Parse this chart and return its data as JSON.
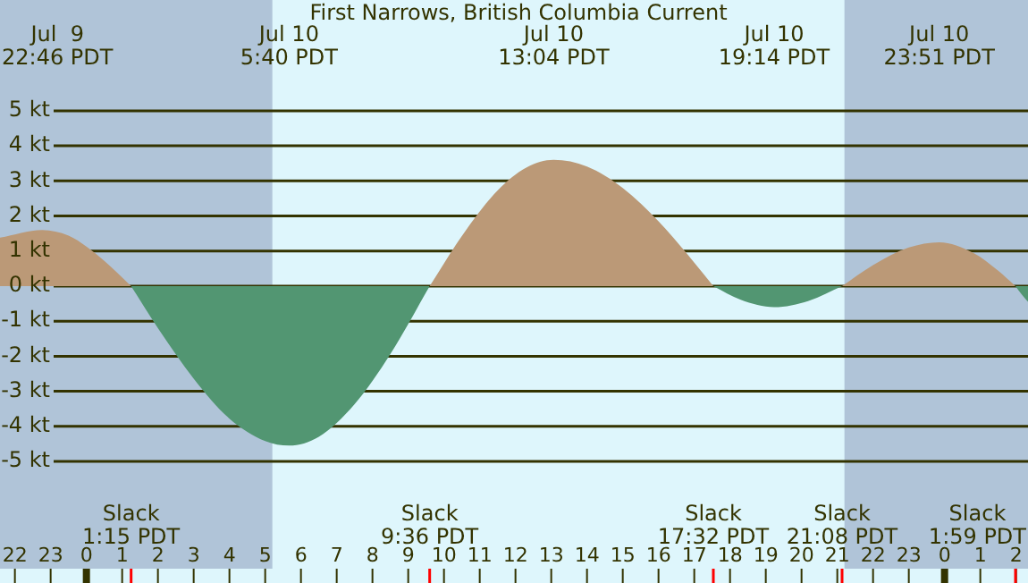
{
  "chart_data": {
    "type": "area",
    "title": "First Narrows, British Columbia Current",
    "series": [
      {
        "color": "#bb9977",
        "x": [
          "--07-09T21:35",
          "--07-09T22:46",
          "--07-09T23:30",
          "--07-10T00:00",
          "--07-10T00:30",
          "--07-10T01:15",
          "--07-10T05:40",
          "--07-10T09:36",
          "--07-10T10:30",
          "--07-10T11:30",
          "--07-10T12:18",
          "--07-10T13:04",
          "--07-10T14:00",
          "--07-10T15:00",
          "--07-10T16:00",
          "--07-10T17:00",
          "--07-10T17:32",
          "--07-10T19:14",
          "--07-10T21:08",
          "--07-10T22:00",
          "--07-10T23:00",
          "--07-10T23:51",
          "--07-11T00:48",
          "--07-11T01:30",
          "--07-11T01:59"
        ],
        "values": [
          1.38,
          1.6,
          1.44,
          1.13,
          0.72,
          0,
          null,
          0,
          1.43,
          2.73,
          3.38,
          3.6,
          3.41,
          2.8,
          1.85,
          0.67,
          0,
          null,
          0,
          0.6,
          1.1,
          1.25,
          0.95,
          0.44,
          0
        ]
      },
      {
        "color": "#529672",
        "x": [
          "--07-10T01:15",
          "--07-10T02:00",
          "--07-10T03:00",
          "--07-10T04:00",
          "--07-10T05:00",
          "--07-10T05:40",
          "--07-10T06:30",
          "--07-10T07:30",
          "--07-10T08:30",
          "--07-10T09:36",
          "--07-10T13:04",
          "--07-10T17:32",
          "--07-10T18:18",
          "--07-10T19:14",
          "--07-10T20:12",
          "--07-10T21:08",
          "--07-10T23:51",
          "--07-11T01:59",
          "--07-11T02:10",
          "--07-11T02:20"
        ],
        "values": [
          0,
          -1.2,
          -2.64,
          -3.78,
          -4.42,
          -4.55,
          -4.3,
          -3.37,
          -1.94,
          0,
          null,
          0,
          -0.39,
          -0.6,
          -0.42,
          0,
          null,
          0,
          -0.25,
          -0.45
        ]
      }
    ],
    "xlim": [
      "--07-09T21:35",
      "--07-11T02:20"
    ],
    "ylim": [
      -8.06,
      8.16
    ],
    "xticks": [
      {
        "value": "--07-09T22:00",
        "label": "22"
      },
      {
        "value": "--07-09T23:00",
        "label": "23"
      },
      {
        "value": "--07-10T00:00",
        "label": "0"
      },
      {
        "value": "--07-10T01:00",
        "label": "1"
      },
      {
        "value": "--07-10T02:00",
        "label": "2"
      },
      {
        "value": "--07-10T03:00",
        "label": "3"
      },
      {
        "value": "--07-10T04:00",
        "label": "4"
      },
      {
        "value": "--07-10T05:00",
        "label": "5"
      },
      {
        "value": "--07-10T06:00",
        "label": "6"
      },
      {
        "value": "--07-10T07:00",
        "label": "7"
      },
      {
        "value": "--07-10T08:00",
        "label": "8"
      },
      {
        "value": "--07-10T09:00",
        "label": "9"
      },
      {
        "value": "--07-10T10:00",
        "label": "10"
      },
      {
        "value": "--07-10T11:00",
        "label": "11"
      },
      {
        "value": "--07-10T12:00",
        "label": "12"
      },
      {
        "value": "--07-10T13:00",
        "label": "13"
      },
      {
        "value": "--07-10T14:00",
        "label": "14"
      },
      {
        "value": "--07-10T15:00",
        "label": "15"
      },
      {
        "value": "--07-10T16:00",
        "label": "16"
      },
      {
        "value": "--07-10T17:00",
        "label": "17"
      },
      {
        "value": "--07-10T18:00",
        "label": "18"
      },
      {
        "value": "--07-10T19:00",
        "label": "19"
      },
      {
        "value": "--07-10T20:00",
        "label": "20"
      },
      {
        "value": "--07-10T21:00",
        "label": "21"
      },
      {
        "value": "--07-10T22:00",
        "label": "22"
      },
      {
        "value": "--07-10T23:00",
        "label": "23"
      },
      {
        "value": "--07-11T00:00",
        "label": "0"
      },
      {
        "value": "--07-11T01:00",
        "label": "1"
      },
      {
        "value": "--07-11T02:00",
        "label": "2"
      }
    ],
    "yticks": [
      {
        "value": -5,
        "label": "-5 kt"
      },
      {
        "value": -4,
        "label": "-4 kt"
      },
      {
        "value": -3,
        "label": "-3 kt"
      },
      {
        "value": -2,
        "label": "-2 kt"
      },
      {
        "value": -1,
        "label": "-1 kt"
      },
      {
        "value": 0,
        "label": "0 kt"
      },
      {
        "value": 1,
        "label": "1 kt"
      },
      {
        "value": 2,
        "label": "2 kt"
      },
      {
        "value": 3,
        "label": "3 kt"
      },
      {
        "value": 4,
        "label": "4 kt"
      },
      {
        "value": 5,
        "label": "5 kt"
      }
    ],
    "grid": "y",
    "bands": [
      {
        "axis": "x",
        "from": "--07-09T21:35",
        "to": "--07-10T05:12",
        "color": "#b0c4d8"
      },
      {
        "axis": "x",
        "from": "--07-10T21:12",
        "to": "--07-11T02:20",
        "color": "#b0c4d8"
      }
    ],
    "annotations": [
      "Jul  9\n22:46 PDT",
      "Slack\n1:15 PDT",
      "Jul 10\n5:40 PDT",
      "Slack\n9:36 PDT",
      "Jul 10\n13:04 PDT",
      "Slack\n17:32 PDT",
      "Jul 10\n19:14 PDT",
      "Slack\n21:08 PDT",
      "Jul 10\n23:51 PDT",
      "Slack\n1:59 PDT"
    ]
  }
}
